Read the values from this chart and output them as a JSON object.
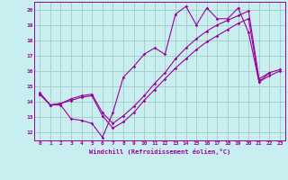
{
  "title": "",
  "xlabel": "Windchill (Refroidissement éolien,°C)",
  "ylabel": "",
  "background_color": "#c8eef0",
  "line_color": "#990099",
  "grid_color": "#aacccc",
  "xlim": [
    -0.5,
    23.5
  ],
  "ylim": [
    11.5,
    20.5
  ],
  "yticks": [
    12,
    13,
    14,
    15,
    16,
    17,
    18,
    19,
    20
  ],
  "xticks": [
    0,
    1,
    2,
    3,
    4,
    5,
    6,
    7,
    8,
    9,
    10,
    11,
    12,
    13,
    14,
    15,
    16,
    17,
    18,
    19,
    20,
    21,
    22,
    23
  ],
  "series1_x": [
    0,
    1,
    2,
    3,
    4,
    5,
    6,
    7,
    8,
    9,
    10,
    11,
    12,
    13,
    14,
    15,
    16,
    17,
    18,
    19,
    20,
    21,
    22,
    23
  ],
  "series1_y": [
    14.6,
    13.8,
    13.8,
    12.9,
    12.8,
    12.6,
    11.7,
    13.3,
    15.6,
    16.3,
    17.1,
    17.5,
    17.1,
    19.7,
    20.2,
    19.0,
    20.1,
    19.4,
    19.4,
    20.1,
    18.5,
    15.3,
    15.9,
    null
  ],
  "series2_x": [
    0,
    1,
    2,
    3,
    4,
    5,
    6,
    7,
    8,
    9,
    10,
    11,
    12,
    13,
    14,
    15,
    16,
    17,
    18,
    19,
    20,
    21,
    22,
    23
  ],
  "series2_y": [
    14.5,
    13.8,
    13.9,
    14.1,
    14.3,
    14.4,
    13.1,
    12.3,
    12.7,
    13.3,
    14.1,
    14.8,
    15.5,
    16.2,
    16.8,
    17.4,
    17.9,
    18.3,
    18.7,
    19.1,
    19.4,
    15.3,
    15.7,
    16.0
  ],
  "series3_x": [
    0,
    1,
    2,
    3,
    4,
    5,
    6,
    7,
    8,
    9,
    10,
    11,
    12,
    13,
    14,
    15,
    16,
    17,
    18,
    19,
    20,
    21,
    22,
    23
  ],
  "series3_y": [
    14.5,
    13.8,
    13.9,
    14.2,
    14.4,
    14.5,
    13.3,
    12.6,
    13.1,
    13.7,
    14.4,
    15.2,
    15.9,
    16.8,
    17.5,
    18.1,
    18.6,
    19.0,
    19.3,
    19.6,
    19.9,
    15.5,
    15.9,
    16.1
  ]
}
